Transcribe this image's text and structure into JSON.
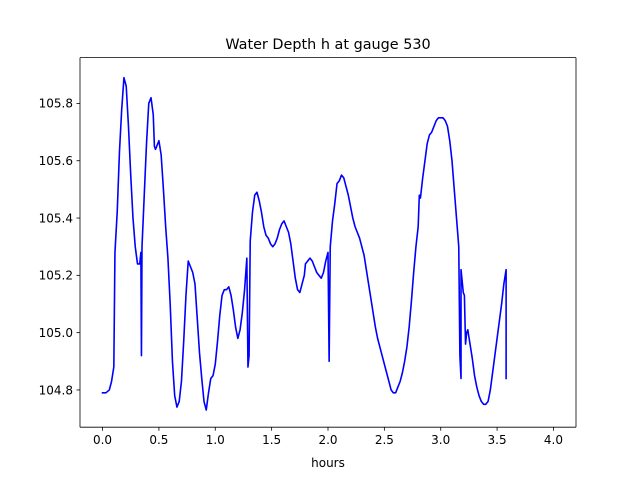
{
  "chart_data": {
    "type": "line",
    "title": "Water Depth h at gauge 530",
    "xlabel": "hours",
    "ylabel": "",
    "xlim": [
      -0.2,
      4.2
    ],
    "ylim": [
      104.67,
      105.96
    ],
    "x_ticks": [
      0.0,
      0.5,
      1.0,
      1.5,
      2.0,
      2.5,
      3.0,
      3.5,
      4.0
    ],
    "x_tick_labels": [
      "0.0",
      "0.5",
      "1.0",
      "1.5",
      "2.0",
      "2.5",
      "3.0",
      "3.5",
      "4.0"
    ],
    "y_ticks": [
      104.8,
      105.0,
      105.2,
      105.4,
      105.6,
      105.8
    ],
    "y_tick_labels": [
      "104.8",
      "105.0",
      "105.2",
      "105.4",
      "105.6",
      "105.8"
    ],
    "grid": false,
    "legend": "none",
    "series": [
      {
        "color": "#0000ff",
        "points": [
          [
            0.0,
            104.79
          ],
          [
            0.03,
            104.79
          ],
          [
            0.06,
            104.8
          ],
          [
            0.08,
            104.83
          ],
          [
            0.1,
            104.88
          ],
          [
            0.11,
            105.28
          ],
          [
            0.13,
            105.42
          ],
          [
            0.15,
            105.63
          ],
          [
            0.17,
            105.78
          ],
          [
            0.19,
            105.89
          ],
          [
            0.21,
            105.86
          ],
          [
            0.23,
            105.72
          ],
          [
            0.25,
            105.55
          ],
          [
            0.27,
            105.4
          ],
          [
            0.29,
            105.3
          ],
          [
            0.31,
            105.24
          ],
          [
            0.33,
            105.24
          ],
          [
            0.34,
            105.28
          ],
          [
            0.345,
            104.92
          ],
          [
            0.35,
            105.3
          ],
          [
            0.37,
            105.48
          ],
          [
            0.39,
            105.66
          ],
          [
            0.41,
            105.8
          ],
          [
            0.43,
            105.82
          ],
          [
            0.45,
            105.76
          ],
          [
            0.46,
            105.65
          ],
          [
            0.47,
            105.64
          ],
          [
            0.5,
            105.67
          ],
          [
            0.52,
            105.62
          ],
          [
            0.54,
            105.5
          ],
          [
            0.56,
            105.37
          ],
          [
            0.58,
            105.26
          ],
          [
            0.6,
            105.1
          ],
          [
            0.62,
            104.9
          ],
          [
            0.64,
            104.78
          ],
          [
            0.66,
            104.74
          ],
          [
            0.68,
            104.76
          ],
          [
            0.7,
            104.83
          ],
          [
            0.72,
            104.97
          ],
          [
            0.74,
            105.13
          ],
          [
            0.76,
            105.25
          ],
          [
            0.78,
            105.23
          ],
          [
            0.8,
            105.21
          ],
          [
            0.82,
            105.17
          ],
          [
            0.84,
            105.05
          ],
          [
            0.86,
            104.93
          ],
          [
            0.88,
            104.84
          ],
          [
            0.9,
            104.76
          ],
          [
            0.92,
            104.73
          ],
          [
            0.94,
            104.79
          ],
          [
            0.96,
            104.84
          ],
          [
            0.98,
            104.85
          ],
          [
            1.0,
            104.89
          ],
          [
            1.02,
            104.97
          ],
          [
            1.04,
            105.06
          ],
          [
            1.06,
            105.13
          ],
          [
            1.08,
            105.15
          ],
          [
            1.1,
            105.15
          ],
          [
            1.12,
            105.16
          ],
          [
            1.14,
            105.13
          ],
          [
            1.16,
            105.08
          ],
          [
            1.18,
            105.02
          ],
          [
            1.2,
            104.98
          ],
          [
            1.22,
            105.01
          ],
          [
            1.24,
            105.07
          ],
          [
            1.26,
            105.15
          ],
          [
            1.28,
            105.26
          ],
          [
            1.29,
            104.88
          ],
          [
            1.3,
            104.92
          ],
          [
            1.31,
            105.32
          ],
          [
            1.33,
            105.42
          ],
          [
            1.35,
            105.48
          ],
          [
            1.37,
            105.49
          ],
          [
            1.39,
            105.46
          ],
          [
            1.41,
            105.42
          ],
          [
            1.43,
            105.37
          ],
          [
            1.45,
            105.34
          ],
          [
            1.47,
            105.33
          ],
          [
            1.49,
            105.31
          ],
          [
            1.51,
            105.3
          ],
          [
            1.53,
            105.31
          ],
          [
            1.55,
            105.33
          ],
          [
            1.57,
            105.36
          ],
          [
            1.59,
            105.38
          ],
          [
            1.61,
            105.39
          ],
          [
            1.63,
            105.37
          ],
          [
            1.65,
            105.35
          ],
          [
            1.67,
            105.31
          ],
          [
            1.69,
            105.25
          ],
          [
            1.71,
            105.19
          ],
          [
            1.73,
            105.15
          ],
          [
            1.75,
            105.14
          ],
          [
            1.77,
            105.17
          ],
          [
            1.79,
            105.2
          ],
          [
            1.8,
            105.24
          ],
          [
            1.82,
            105.25
          ],
          [
            1.84,
            105.26
          ],
          [
            1.86,
            105.25
          ],
          [
            1.88,
            105.23
          ],
          [
            1.9,
            105.21
          ],
          [
            1.92,
            105.2
          ],
          [
            1.94,
            105.19
          ],
          [
            1.96,
            105.21
          ],
          [
            1.98,
            105.25
          ],
          [
            2.0,
            105.28
          ],
          [
            2.01,
            104.9
          ],
          [
            2.02,
            105.3
          ],
          [
            2.04,
            105.39
          ],
          [
            2.06,
            105.45
          ],
          [
            2.08,
            105.52
          ],
          [
            2.1,
            105.53
          ],
          [
            2.12,
            105.55
          ],
          [
            2.14,
            105.54
          ],
          [
            2.16,
            105.51
          ],
          [
            2.18,
            105.48
          ],
          [
            2.2,
            105.44
          ],
          [
            2.22,
            105.4
          ],
          [
            2.24,
            105.37
          ],
          [
            2.26,
            105.35
          ],
          [
            2.28,
            105.33
          ],
          [
            2.3,
            105.3
          ],
          [
            2.32,
            105.27
          ],
          [
            2.34,
            105.22
          ],
          [
            2.36,
            105.17
          ],
          [
            2.38,
            105.12
          ],
          [
            2.4,
            105.07
          ],
          [
            2.42,
            105.02
          ],
          [
            2.44,
            104.98
          ],
          [
            2.46,
            104.95
          ],
          [
            2.48,
            104.92
          ],
          [
            2.5,
            104.89
          ],
          [
            2.52,
            104.86
          ],
          [
            2.54,
            104.83
          ],
          [
            2.56,
            104.8
          ],
          [
            2.58,
            104.79
          ],
          [
            2.6,
            104.79
          ],
          [
            2.62,
            104.81
          ],
          [
            2.64,
            104.83
          ],
          [
            2.66,
            104.86
          ],
          [
            2.68,
            104.9
          ],
          [
            2.7,
            104.95
          ],
          [
            2.72,
            105.02
          ],
          [
            2.74,
            105.11
          ],
          [
            2.76,
            105.21
          ],
          [
            2.78,
            105.3
          ],
          [
            2.8,
            105.37
          ],
          [
            2.81,
            105.48
          ],
          [
            2.82,
            105.47
          ],
          [
            2.84,
            105.54
          ],
          [
            2.86,
            105.6
          ],
          [
            2.88,
            105.66
          ],
          [
            2.9,
            105.69
          ],
          [
            2.92,
            105.7
          ],
          [
            2.94,
            105.72
          ],
          [
            2.96,
            105.74
          ],
          [
            2.98,
            105.75
          ],
          [
            3.0,
            105.75
          ],
          [
            3.02,
            105.75
          ],
          [
            3.04,
            105.74
          ],
          [
            3.06,
            105.72
          ],
          [
            3.08,
            105.67
          ],
          [
            3.1,
            105.6
          ],
          [
            3.12,
            105.5
          ],
          [
            3.14,
            105.4
          ],
          [
            3.16,
            105.3
          ],
          [
            3.17,
            104.92
          ],
          [
            3.18,
            104.84
          ],
          [
            3.18,
            105.22
          ],
          [
            3.19,
            105.18
          ],
          [
            3.2,
            105.14
          ],
          [
            3.21,
            105.13
          ],
          [
            3.22,
            104.96
          ],
          [
            3.23,
            105.0
          ],
          [
            3.24,
            105.01
          ],
          [
            3.26,
            104.96
          ],
          [
            3.28,
            104.91
          ],
          [
            3.3,
            104.85
          ],
          [
            3.32,
            104.81
          ],
          [
            3.34,
            104.78
          ],
          [
            3.36,
            104.76
          ],
          [
            3.38,
            104.75
          ],
          [
            3.4,
            104.75
          ],
          [
            3.42,
            104.76
          ],
          [
            3.44,
            104.8
          ],
          [
            3.46,
            104.86
          ],
          [
            3.48,
            104.92
          ],
          [
            3.5,
            104.98
          ],
          [
            3.52,
            105.04
          ],
          [
            3.54,
            105.1
          ],
          [
            3.56,
            105.17
          ],
          [
            3.58,
            105.22
          ],
          [
            3.58,
            104.84
          ]
        ]
      }
    ]
  }
}
